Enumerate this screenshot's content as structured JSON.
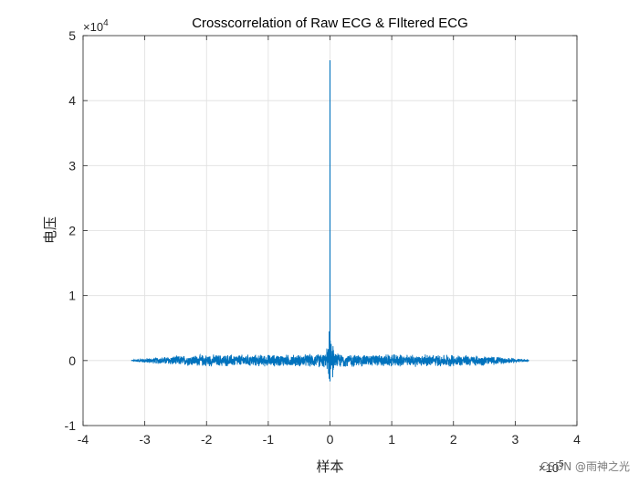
{
  "chart_data": {
    "type": "line",
    "title": "Crosscorrelation of Raw ECG & FIltered ECG",
    "xlabel": "样本",
    "ylabel": "电压",
    "x_exponent_label": "×10",
    "x_exponent_power": "5",
    "y_exponent_label": "×10",
    "y_exponent_power": "4",
    "xlim": [
      -4,
      4
    ],
    "ylim": [
      -1,
      5
    ],
    "xticks": [
      -4,
      -3,
      -2,
      -1,
      0,
      1,
      2,
      3,
      4
    ],
    "xtick_labels": [
      "-4",
      "-3",
      "-2",
      "-1",
      "0",
      "1",
      "2",
      "3",
      "4"
    ],
    "yticks": [
      -1,
      0,
      1,
      2,
      3,
      4,
      5
    ],
    "ytick_labels": [
      "-1",
      "0",
      "1",
      "2",
      "3",
      "4",
      "5"
    ],
    "grid": true,
    "series": [
      {
        "color": "#0072BD",
        "x_range": [
          -3.22,
          3.22
        ],
        "noise_envelope": {
          "x": [
            -3.22,
            -3.0,
            -2.5,
            -2.0,
            -1.5,
            -1.0,
            -0.5,
            -0.1,
            0.1,
            0.5,
            1.0,
            1.5,
            2.0,
            2.5,
            3.0,
            3.22
          ],
          "amplitude": [
            0.01,
            0.04,
            0.08,
            0.1,
            0.1,
            0.1,
            0.1,
            0.12,
            0.12,
            0.1,
            0.1,
            0.1,
            0.1,
            0.08,
            0.04,
            0.01
          ]
        },
        "peak": {
          "x": 0,
          "y": 4.62
        },
        "min": {
          "x": 0,
          "y": -0.32
        }
      }
    ]
  },
  "watermark": "CSDN @雨神之光"
}
